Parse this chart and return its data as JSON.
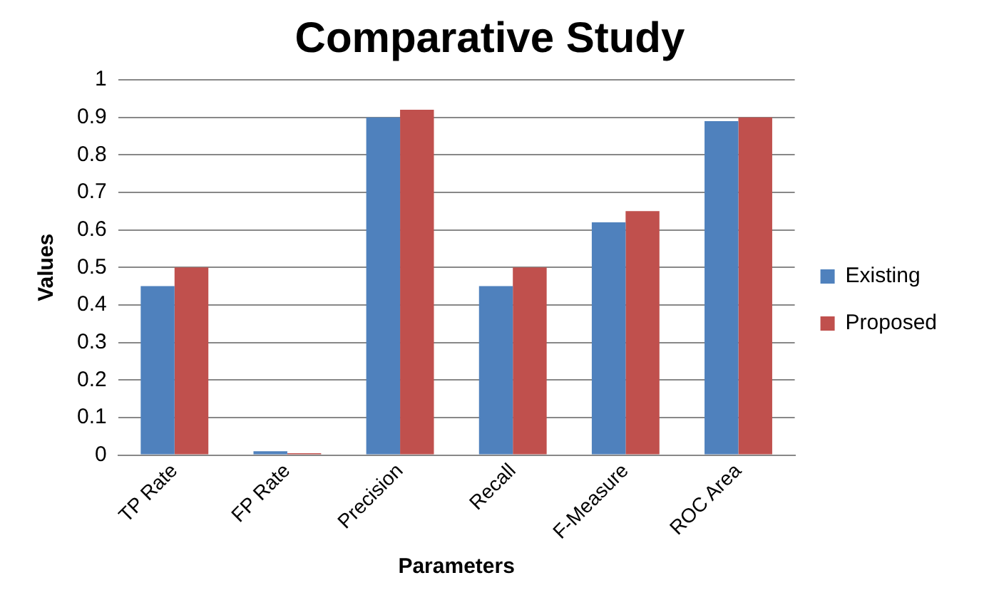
{
  "chart_data": {
    "type": "bar",
    "title": "Comparative Study",
    "xlabel": "Parameters",
    "ylabel": "Values",
    "categories": [
      "TP Rate",
      "FP Rate",
      "Precision",
      "Recall",
      "F-Measure",
      "ROC Area"
    ],
    "series": [
      {
        "name": "Existing",
        "color": "#4f81bd",
        "values": [
          0.45,
          0.01,
          0.9,
          0.45,
          0.62,
          0.89
        ]
      },
      {
        "name": "Proposed",
        "color": "#c0504d",
        "values": [
          0.5,
          0.005,
          0.92,
          0.5,
          0.65,
          0.9
        ]
      }
    ],
    "ylim": [
      0,
      1
    ],
    "yticks": [
      0,
      0.1,
      0.2,
      0.3,
      0.4,
      0.5,
      0.6,
      0.7,
      0.8,
      0.9,
      1
    ],
    "grid": "y",
    "legend": "right"
  }
}
